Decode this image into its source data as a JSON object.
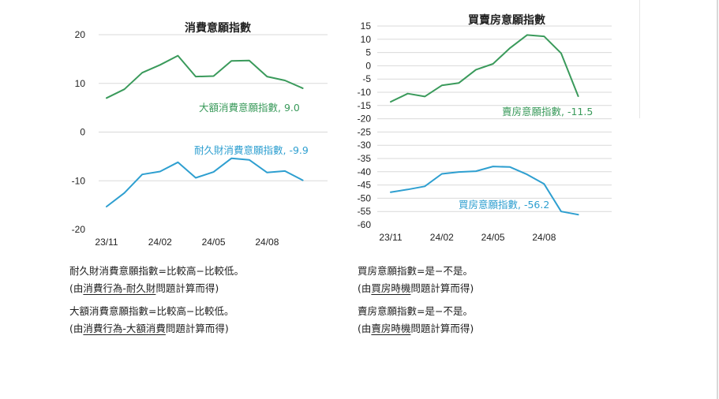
{
  "colors": {
    "green": "#3a9a5b",
    "blue": "#2e9fd0",
    "grid": "#d9d9d9",
    "text": "#222222"
  },
  "chart_data": [
    {
      "type": "line",
      "title": "消費意願指數",
      "x": [
        "23/11",
        "23/12",
        "24/01",
        "24/02",
        "24/03",
        "24/04",
        "24/05",
        "24/06",
        "24/07",
        "24/08",
        "24/09",
        "24/10"
      ],
      "xticks": [
        "23/11",
        "24/02",
        "24/05",
        "24/08"
      ],
      "yticks": [
        "20",
        "10",
        "0",
        "-10",
        "-20"
      ],
      "ylim": [
        -20,
        20
      ],
      "grid": true,
      "series": [
        {
          "name": "大額消費意願指數",
          "label": "大額消費意願指數, 9.0",
          "color": "#3a9a5b",
          "values": [
            7.0,
            8.8,
            12.2,
            13.8,
            15.7,
            11.4,
            11.5,
            14.6,
            14.7,
            11.4,
            10.6,
            9.0
          ]
        },
        {
          "name": "耐久財消費意願指數",
          "label": "耐久財消費意願指數, -9.9",
          "color": "#2e9fd0",
          "values": [
            -15.3,
            -12.5,
            -8.7,
            -8.1,
            -6.2,
            -9.4,
            -8.2,
            -5.4,
            -5.7,
            -8.3,
            -8.0,
            -9.9
          ]
        }
      ]
    },
    {
      "type": "line",
      "title": "買賣房意願指數",
      "x": [
        "23/11",
        "23/12",
        "24/01",
        "24/02",
        "24/03",
        "24/04",
        "24/05",
        "24/06",
        "24/07",
        "24/08",
        "24/09",
        "24/10"
      ],
      "xticks": [
        "23/11",
        "24/02",
        "24/05",
        "24/08"
      ],
      "yticks": [
        "15",
        "10",
        "5",
        "0",
        "-5",
        "-10",
        "-15",
        "-20",
        "-25",
        "-30",
        "-35",
        "-40",
        "-45",
        "-50",
        "-55",
        "-60"
      ],
      "ylim": [
        -60,
        15
      ],
      "grid": true,
      "series": [
        {
          "name": "賣房意願指數",
          "label": "賣房意願指數, -11.5",
          "color": "#3a9a5b",
          "values": [
            -13.6,
            -10.5,
            -11.6,
            -7.4,
            -6.5,
            -1.5,
            0.7,
            6.7,
            11.6,
            11.1,
            4.7,
            -11.5
          ]
        },
        {
          "name": "買房意願指數",
          "label": "買房意願指數, -56.2",
          "color": "#2e9fd0",
          "values": [
            -47.7,
            -46.7,
            -45.5,
            -40.8,
            -40.1,
            -39.8,
            -38.0,
            -38.2,
            -41.0,
            -44.6,
            -55.0,
            -56.2
          ]
        }
      ]
    }
  ],
  "notes": {
    "left": {
      "n1": "耐久財消費意願指數=比較高−比較低。",
      "n2_pre": "(由",
      "n2_u": "消費行為-耐久財",
      "n2_post": "問題計算而得)",
      "n3": "大額消費意願指數=比較高−比較低。",
      "n4_pre": "(由",
      "n4_u": "消費行為-大額消費",
      "n4_post": "問題計算而得)"
    },
    "right": {
      "n1": "買房意願指數=是−不是。",
      "n2_pre": "(由",
      "n2_u": "買房時機",
      "n2_post": "問題計算而得)",
      "n3": "賣房意願指數=是−不是。",
      "n4_pre": "(由",
      "n4_u": "賣房時機",
      "n4_post": "問題計算而得)"
    }
  }
}
